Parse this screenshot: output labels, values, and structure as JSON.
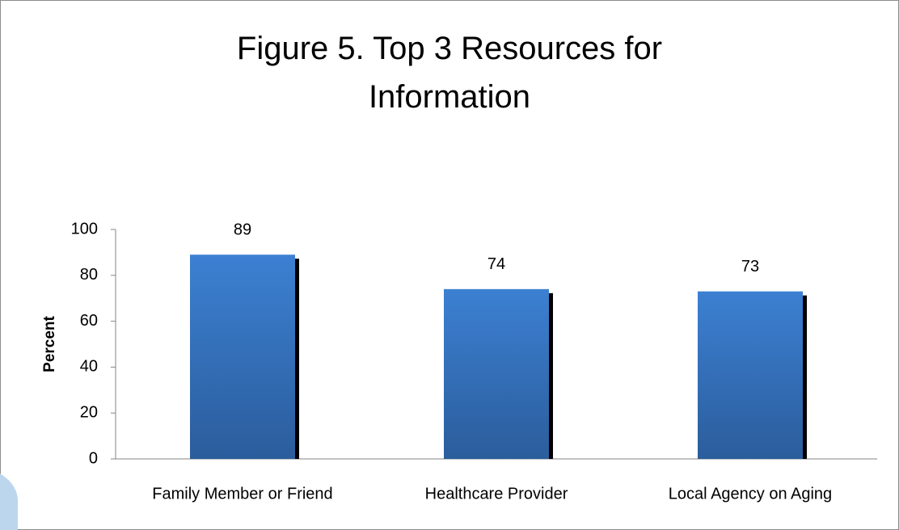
{
  "chart_data": {
    "type": "bar",
    "title": "Figure 5. Top 3 Resources for Information",
    "y_label": "Percent",
    "categories": [
      "Family Member or Friend",
      "Healthcare Provider",
      "Local Agency on Aging"
    ],
    "values": [
      89,
      74,
      73
    ],
    "color": "#3a7acb",
    "ylim": [
      0,
      100
    ],
    "yticks": [
      0,
      20,
      40,
      60,
      80,
      100
    ],
    "grid": false
  }
}
